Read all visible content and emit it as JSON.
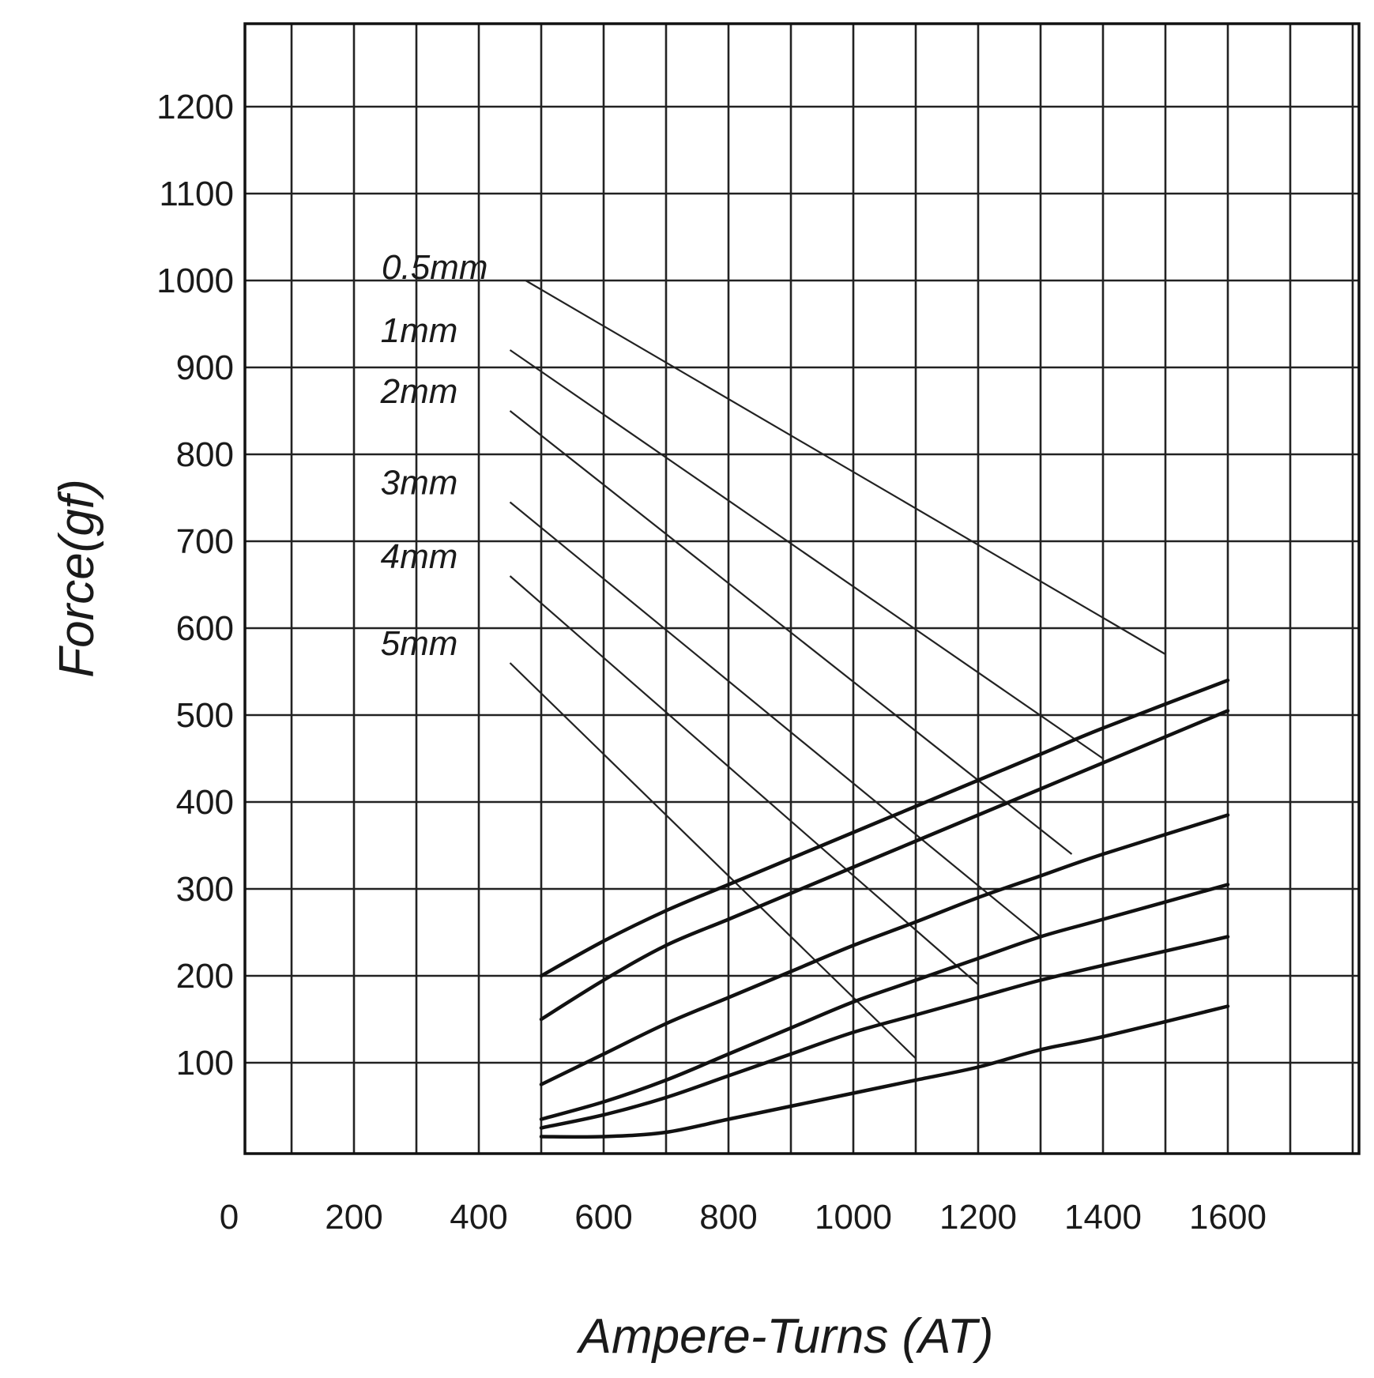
{
  "chart_data": {
    "type": "line",
    "title": "",
    "xlabel": "Ampere-Turns (AT)",
    "ylabel": "Force(gf)",
    "xlim": [
      0,
      1800
    ],
    "ylim": [
      0,
      1300
    ],
    "x_ticks": [
      {
        "value": 0,
        "label": "0"
      },
      {
        "value": 200,
        "label": "200"
      },
      {
        "value": 400,
        "label": "400"
      },
      {
        "value": 600,
        "label": "600"
      },
      {
        "value": 800,
        "label": "800"
      },
      {
        "value": 1000,
        "label": "1000"
      },
      {
        "value": 1200,
        "label": "1200"
      },
      {
        "value": 1400,
        "label": "1400"
      },
      {
        "value": 1600,
        "label": "1600"
      }
    ],
    "y_ticks": [
      {
        "value": 100,
        "label": "100"
      },
      {
        "value": 200,
        "label": "200"
      },
      {
        "value": 300,
        "label": "300"
      },
      {
        "value": 400,
        "label": "400"
      },
      {
        "value": 500,
        "label": "500"
      },
      {
        "value": 600,
        "label": "600"
      },
      {
        "value": 700,
        "label": "700"
      },
      {
        "value": 800,
        "label": "800"
      },
      {
        "value": 900,
        "label": "900"
      },
      {
        "value": 1000,
        "label": "1000"
      },
      {
        "value": 1100,
        "label": "1100"
      },
      {
        "value": 1200,
        "label": "1200"
      }
    ],
    "grid": true,
    "grid_step_x": 100,
    "grid_step_y": 100,
    "series": [
      {
        "name": "0.5mm",
        "x": [
          500,
          600,
          700,
          800,
          900,
          1000,
          1100,
          1200,
          1300,
          1400,
          1600
        ],
        "y": [
          200,
          240,
          275,
          305,
          335,
          365,
          395,
          425,
          455,
          485,
          540
        ]
      },
      {
        "name": "1mm",
        "x": [
          500,
          600,
          700,
          800,
          900,
          1000,
          1100,
          1200,
          1300,
          1400,
          1600
        ],
        "y": [
          150,
          195,
          235,
          265,
          295,
          325,
          355,
          385,
          415,
          445,
          505
        ]
      },
      {
        "name": "2mm",
        "x": [
          500,
          600,
          700,
          800,
          900,
          1000,
          1100,
          1200,
          1300,
          1400,
          1600
        ],
        "y": [
          75,
          110,
          145,
          175,
          205,
          235,
          262,
          290,
          315,
          340,
          385
        ]
      },
      {
        "name": "3mm",
        "x": [
          500,
          600,
          700,
          800,
          900,
          1000,
          1100,
          1200,
          1300,
          1400,
          1600
        ],
        "y": [
          35,
          55,
          80,
          110,
          140,
          170,
          195,
          220,
          245,
          265,
          305
        ]
      },
      {
        "name": "4mm",
        "x": [
          500,
          600,
          700,
          800,
          900,
          1000,
          1100,
          1200,
          1300,
          1400,
          1600
        ],
        "y": [
          25,
          40,
          60,
          85,
          110,
          135,
          155,
          175,
          195,
          212,
          245
        ]
      },
      {
        "name": "5mm",
        "x": [
          500,
          600,
          700,
          800,
          900,
          1000,
          1100,
          1200,
          1300,
          1400,
          1600
        ],
        "y": [
          15,
          15,
          20,
          35,
          50,
          65,
          80,
          95,
          115,
          130,
          165
        ]
      }
    ],
    "load_lines": [
      {
        "gap": "0.5mm",
        "x": [
          475,
          1500
        ],
        "y": [
          1000,
          570
        ]
      },
      {
        "gap": "1mm",
        "x": [
          450,
          1400
        ],
        "y": [
          920,
          450
        ]
      },
      {
        "gap": "2mm",
        "x": [
          450,
          1350
        ],
        "y": [
          850,
          340
        ]
      },
      {
        "gap": "3mm",
        "x": [
          450,
          1300
        ],
        "y": [
          745,
          245
        ]
      },
      {
        "gap": "4mm",
        "x": [
          450,
          1200
        ],
        "y": [
          660,
          190
        ]
      },
      {
        "gap": "5mm",
        "x": [
          450,
          1100
        ],
        "y": [
          560,
          105
        ]
      }
    ],
    "gap_labels": [
      "0.5mm",
      "1mm",
      "2mm",
      "3mm",
      "4mm",
      "5mm"
    ]
  }
}
